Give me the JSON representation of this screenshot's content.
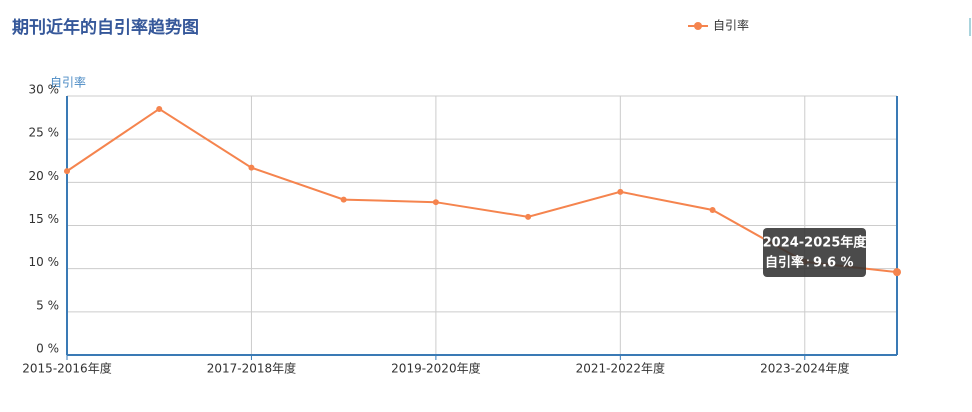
{
  "chart_data": {
    "type": "line",
    "title": "期刊近年的自引率趋势图",
    "y_label": "自引率",
    "categories": [
      "2015-2016年度",
      null,
      "2017-2018年度",
      null,
      "2019-2020年度",
      null,
      "2021-2022年度",
      null,
      "2023-2024年度",
      "2024-2025年度"
    ],
    "series": [
      {
        "name": "自引率",
        "color": "#f5844e",
        "values": [
          21.3,
          28.5,
          21.7,
          18.0,
          17.7,
          16.0,
          18.9,
          16.8,
          10.8,
          9.6
        ],
        "value_labels": [
          null,
          null,
          null,
          null,
          null,
          null,
          null,
          null,
          null,
          "9.6 %"
        ]
      }
    ],
    "ylim": [
      0,
      30
    ],
    "yticks": [
      {
        "value": 0,
        "label": "0 %"
      },
      {
        "value": 5,
        "label": "5 %"
      },
      {
        "value": 10,
        "label": "10 %"
      },
      {
        "value": 15,
        "label": "15 %"
      },
      {
        "value": 20,
        "label": "20 %"
      },
      {
        "value": 25,
        "label": "25 %"
      },
      {
        "value": 30,
        "label": "30 %"
      }
    ],
    "grid": true,
    "legend": "top"
  }
}
